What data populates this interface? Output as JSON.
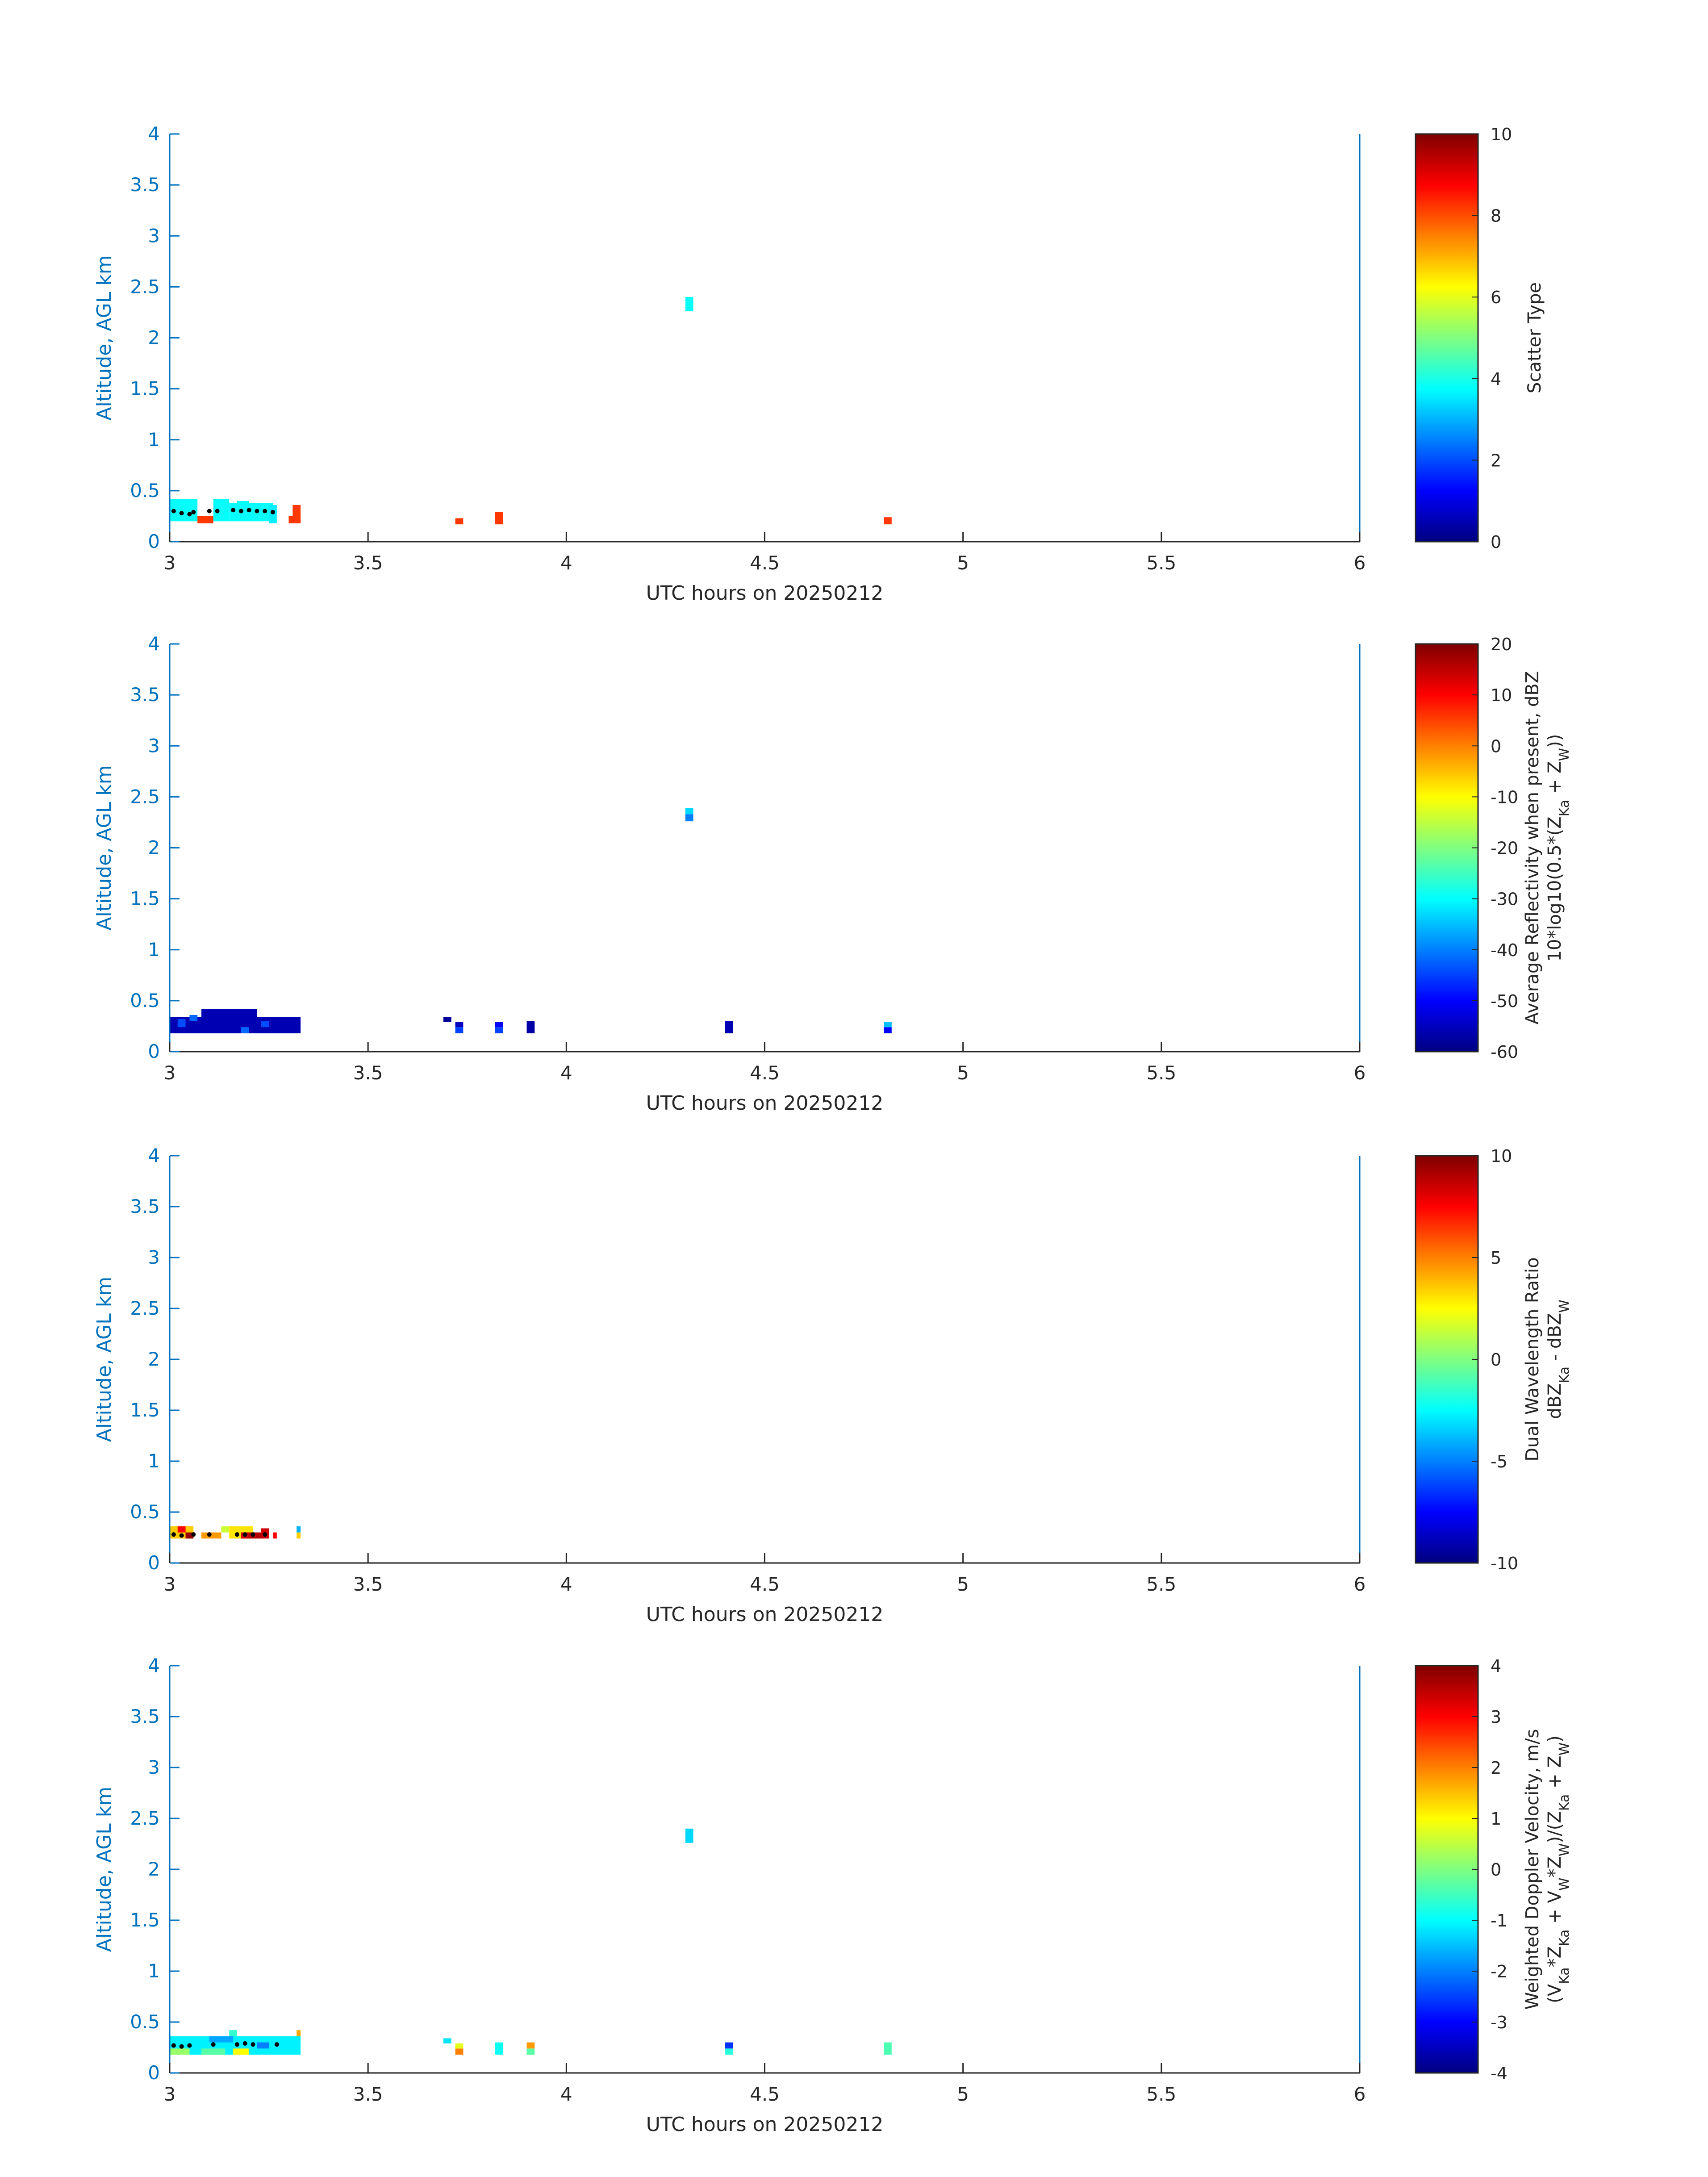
{
  "figure": {
    "theme_axis_color": "#0072BD",
    "text_color": "#262626"
  },
  "chart_data": [
    {
      "type": "heatmap",
      "xlabel": "UTC hours on 20250212",
      "ylabel": "Altitude, AGL km",
      "xlim": [
        3,
        6
      ],
      "ylim": [
        0,
        4
      ],
      "xticks": [
        "3",
        "3.5",
        "4",
        "4.5",
        "5",
        "5.5",
        "6"
      ],
      "yticks": [
        "0",
        "0.5",
        "1",
        "1.5",
        "2",
        "2.5",
        "3",
        "3.5",
        "4"
      ],
      "colorbar": {
        "label_lines": [
          "Scatter Type"
        ],
        "range": [
          0,
          10
        ],
        "ticks": [
          "0",
          "2",
          "4",
          "6",
          "8",
          "10"
        ],
        "colormap": "jet"
      },
      "cells": [
        [
          3.0,
          0.2,
          0.07,
          0.22,
          3.8
        ],
        [
          3.07,
          0.18,
          0.04,
          0.07,
          8.2
        ],
        [
          3.11,
          0.2,
          0.04,
          0.22,
          3.8
        ],
        [
          3.15,
          0.2,
          0.11,
          0.18,
          3.8
        ],
        [
          3.17,
          0.34,
          0.03,
          0.06,
          3.8
        ],
        [
          3.25,
          0.18,
          0.02,
          0.18,
          3.6
        ],
        [
          3.3,
          0.18,
          0.03,
          0.07,
          8.2
        ],
        [
          3.31,
          0.18,
          0.02,
          0.18,
          8.2
        ],
        [
          3.72,
          0.17,
          0.02,
          0.06,
          8.2
        ],
        [
          3.82,
          0.17,
          0.02,
          0.12,
          8.2
        ],
        [
          4.3,
          2.26,
          0.02,
          0.14,
          3.8
        ],
        [
          4.8,
          0.17,
          0.02,
          0.07,
          8.2
        ]
      ],
      "dots": [
        [
          3.01,
          0.3
        ],
        [
          3.03,
          0.28
        ],
        [
          3.05,
          0.27
        ],
        [
          3.06,
          0.29
        ],
        [
          3.1,
          0.3
        ],
        [
          3.12,
          0.3
        ],
        [
          3.16,
          0.31
        ],
        [
          3.18,
          0.3
        ],
        [
          3.2,
          0.31
        ],
        [
          3.22,
          0.3
        ],
        [
          3.24,
          0.3
        ],
        [
          3.26,
          0.29
        ]
      ]
    },
    {
      "type": "heatmap",
      "xlabel": "UTC hours on 20250212",
      "ylabel": "Altitude, AGL km",
      "xlim": [
        3,
        6
      ],
      "ylim": [
        0,
        4
      ],
      "xticks": [
        "3",
        "3.5",
        "4",
        "4.5",
        "5",
        "5.5",
        "6"
      ],
      "yticks": [
        "0",
        "0.5",
        "1",
        "1.5",
        "2",
        "2.5",
        "3",
        "3.5",
        "4"
      ],
      "colorbar": {
        "label_lines": [
          "Average Reflectivity when present, dBZ",
          "10*log10(0.5*(Z_Ka + Z_W))"
        ],
        "range": [
          -60,
          20
        ],
        "ticks": [
          "-60",
          "-50",
          "-40",
          "-30",
          "-20",
          "-10",
          "0",
          "10",
          "20"
        ],
        "colormap": "jet"
      },
      "cells": [
        [
          3.0,
          0.18,
          0.33,
          0.16,
          -56
        ],
        [
          3.08,
          0.34,
          0.14,
          0.08,
          -56
        ],
        [
          3.02,
          0.24,
          0.02,
          0.08,
          -44
        ],
        [
          3.05,
          0.3,
          0.02,
          0.06,
          -42
        ],
        [
          3.18,
          0.18,
          0.02,
          0.06,
          -42
        ],
        [
          3.23,
          0.24,
          0.02,
          0.06,
          -44
        ],
        [
          3.69,
          0.29,
          0.02,
          0.05,
          -58
        ],
        [
          3.72,
          0.18,
          0.02,
          0.06,
          -45
        ],
        [
          3.72,
          0.24,
          0.02,
          0.05,
          -55
        ],
        [
          3.82,
          0.18,
          0.02,
          0.06,
          -45
        ],
        [
          3.82,
          0.24,
          0.02,
          0.05,
          -50
        ],
        [
          3.9,
          0.18,
          0.02,
          0.12,
          -57
        ],
        [
          4.3,
          2.26,
          0.02,
          0.07,
          -40
        ],
        [
          4.3,
          2.33,
          0.02,
          0.06,
          -33
        ],
        [
          4.4,
          0.18,
          0.02,
          0.12,
          -56
        ],
        [
          4.8,
          0.18,
          0.02,
          0.06,
          -50
        ],
        [
          4.8,
          0.24,
          0.02,
          0.05,
          -35
        ]
      ],
      "dots": []
    },
    {
      "type": "heatmap",
      "xlabel": "UTC hours on 20250212",
      "ylabel": "Altitude, AGL km",
      "xlim": [
        3,
        6
      ],
      "ylim": [
        0,
        4
      ],
      "xticks": [
        "3",
        "3.5",
        "4",
        "4.5",
        "5",
        "5.5",
        "6"
      ],
      "yticks": [
        "0",
        "0.5",
        "1",
        "1.5",
        "2",
        "2.5",
        "3",
        "3.5",
        "4"
      ],
      "colorbar": {
        "label_lines": [
          "Dual Wavelength Ratio",
          "dBZ_Ka - dBZ_W"
        ],
        "range": [
          -10,
          10
        ],
        "ticks": [
          "-10",
          "-5",
          "0",
          "5",
          "10"
        ],
        "colormap": "jet"
      },
      "cells": [
        [
          3.0,
          0.24,
          0.06,
          0.12,
          3.5
        ],
        [
          3.02,
          0.3,
          0.02,
          0.06,
          7.5
        ],
        [
          3.04,
          0.24,
          0.02,
          0.06,
          9.5
        ],
        [
          3.08,
          0.24,
          0.05,
          0.06,
          4.5
        ],
        [
          3.13,
          0.3,
          0.02,
          0.06,
          1.5
        ],
        [
          3.15,
          0.24,
          0.06,
          0.12,
          3.0
        ],
        [
          3.18,
          0.24,
          0.02,
          0.06,
          8.5
        ],
        [
          3.2,
          0.24,
          0.03,
          0.06,
          9.0
        ],
        [
          3.23,
          0.24,
          0.02,
          0.1,
          8.5
        ],
        [
          3.26,
          0.24,
          0.01,
          0.06,
          7.5
        ],
        [
          3.32,
          0.24,
          0.01,
          0.06,
          3.5
        ],
        [
          3.32,
          0.3,
          0.01,
          0.06,
          -4.0
        ]
      ],
      "dots": [
        [
          3.01,
          0.28
        ],
        [
          3.03,
          0.27
        ],
        [
          3.06,
          0.28
        ],
        [
          3.1,
          0.28
        ],
        [
          3.17,
          0.28
        ],
        [
          3.19,
          0.28
        ],
        [
          3.21,
          0.28
        ],
        [
          3.24,
          0.28
        ]
      ]
    },
    {
      "type": "heatmap",
      "xlabel": "UTC hours on 20250212",
      "ylabel": "Altitude, AGL km",
      "xlim": [
        3,
        6
      ],
      "ylim": [
        0,
        4
      ],
      "xticks": [
        "3",
        "3.5",
        "4",
        "4.5",
        "5",
        "5.5",
        "6"
      ],
      "yticks": [
        "0",
        "0.5",
        "1",
        "1.5",
        "2",
        "2.5",
        "3",
        "3.5",
        "4"
      ],
      "colorbar": {
        "label_lines": [
          "Weighted Doppler Velocity, m/s",
          "(V_Ka*Z_Ka + V_W*Z_W)/(Z_Ka + Z_W)"
        ],
        "range": [
          -4,
          4
        ],
        "ticks": [
          "-4",
          "-3",
          "-2",
          "-1",
          "0",
          "1",
          "2",
          "3",
          "4"
        ],
        "colormap": "jet"
      },
      "cells": [
        [
          3.0,
          0.18,
          0.33,
          0.18,
          -1.1
        ],
        [
          3.0,
          0.18,
          0.05,
          0.06,
          0.2
        ],
        [
          3.08,
          0.18,
          0.06,
          0.06,
          -0.3
        ],
        [
          3.16,
          0.18,
          0.04,
          0.06,
          1.0
        ],
        [
          3.1,
          0.3,
          0.06,
          0.06,
          -1.7
        ],
        [
          3.15,
          0.36,
          0.02,
          0.06,
          -0.6
        ],
        [
          3.22,
          0.24,
          0.03,
          0.06,
          -2.0
        ],
        [
          3.32,
          0.36,
          0.01,
          0.06,
          1.7
        ],
        [
          3.69,
          0.29,
          0.02,
          0.05,
          -1.2
        ],
        [
          3.72,
          0.18,
          0.02,
          0.06,
          2.0
        ],
        [
          3.72,
          0.24,
          0.02,
          0.05,
          0.8
        ],
        [
          3.82,
          0.18,
          0.02,
          0.12,
          -0.9
        ],
        [
          3.9,
          0.18,
          0.02,
          0.06,
          -0.3
        ],
        [
          3.9,
          0.24,
          0.02,
          0.06,
          1.8
        ],
        [
          4.3,
          2.26,
          0.02,
          0.14,
          -1.3
        ],
        [
          4.4,
          0.18,
          0.02,
          0.06,
          -0.7
        ],
        [
          4.4,
          0.24,
          0.02,
          0.06,
          -2.6
        ],
        [
          4.8,
          0.18,
          0.02,
          0.12,
          -0.4
        ]
      ],
      "dots": [
        [
          3.01,
          0.27
        ],
        [
          3.03,
          0.26
        ],
        [
          3.05,
          0.27
        ],
        [
          3.11,
          0.28
        ],
        [
          3.17,
          0.28
        ],
        [
          3.19,
          0.29
        ],
        [
          3.21,
          0.28
        ],
        [
          3.27,
          0.28
        ]
      ]
    }
  ]
}
